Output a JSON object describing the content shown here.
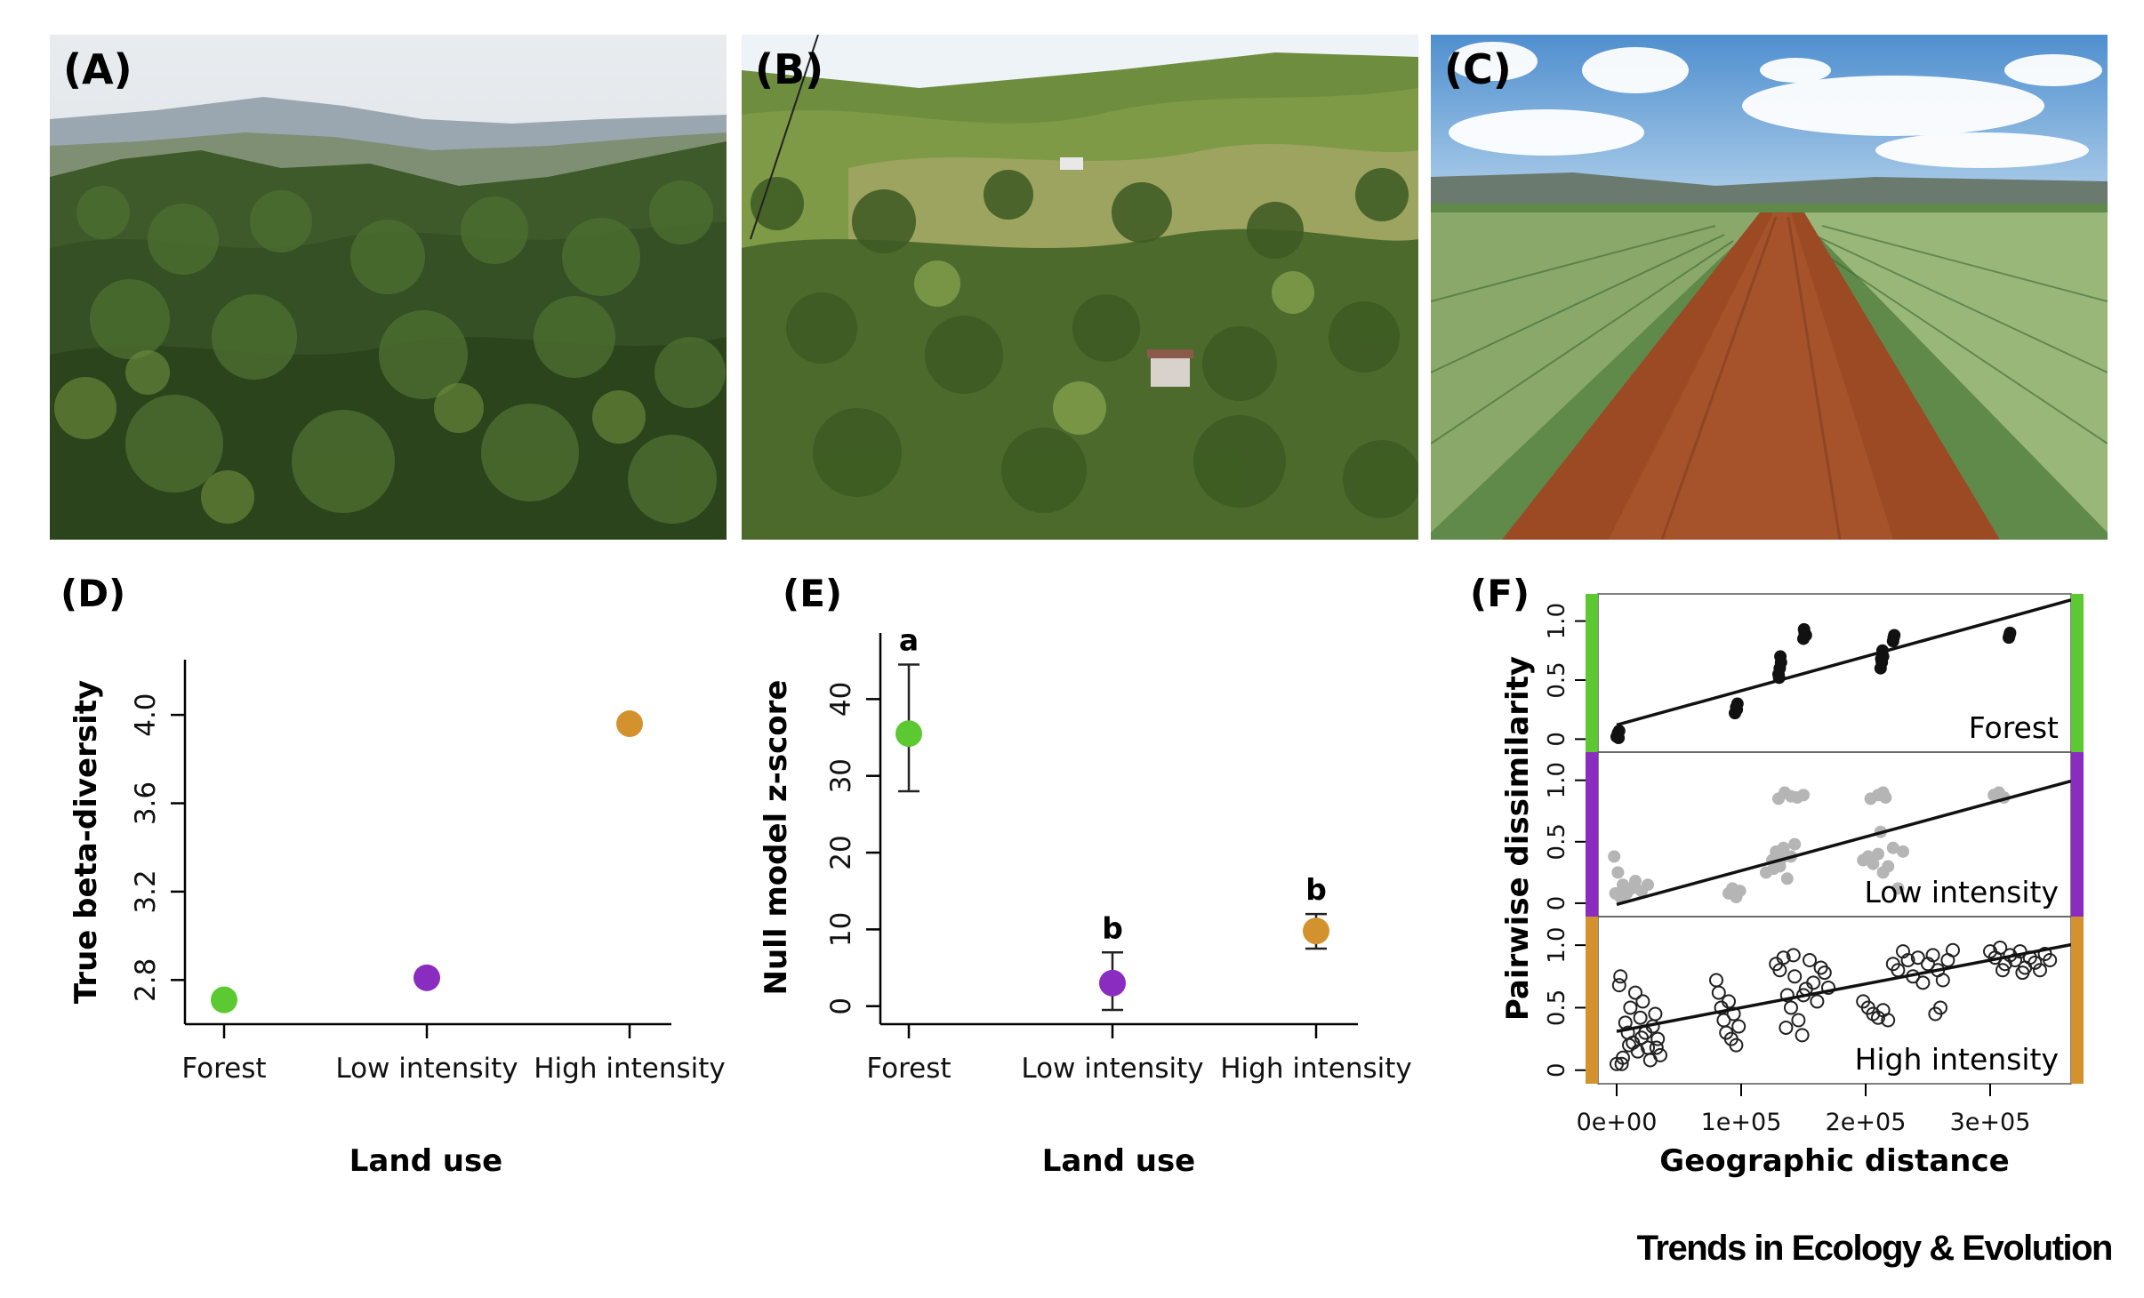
{
  "panel_labels": {
    "A": "(A)",
    "B": "(B)",
    "C": "(C)",
    "D": "(D)",
    "E": "(E)",
    "F": "(F)"
  },
  "photos": [
    {
      "id": "A",
      "subject": "forest-landscape-photo"
    },
    {
      "id": "B",
      "subject": "low-intensity-landscape-photo"
    },
    {
      "id": "C",
      "subject": "high-intensity-pineapple-plantation-photo"
    }
  ],
  "colors": {
    "forest": "#5cc832",
    "low": "#8b2cc0",
    "high": "#d4922e"
  },
  "chart_data": [
    {
      "panel": "D",
      "type": "scatter",
      "categories": [
        "Forest",
        "Low intensity",
        "High intensity"
      ],
      "values": [
        2.71,
        2.81,
        3.96
      ],
      "colors": [
        "#5cc832",
        "#8b2cc0",
        "#d4922e"
      ],
      "xlabel": "Land use",
      "ylabel": "True beta-diversity",
      "yticks": [
        "2.8",
        "3.2",
        "3.6",
        "4.0"
      ],
      "ylim": [
        2.6,
        4.25
      ]
    },
    {
      "panel": "E",
      "type": "scatter",
      "categories": [
        "Forest",
        "Low intensity",
        "High intensity"
      ],
      "values": [
        35.5,
        3.0,
        9.8
      ],
      "err_low": [
        28.0,
        -0.5,
        7.5
      ],
      "err_high": [
        44.5,
        7.0,
        12.0
      ],
      "significance": [
        "a",
        "b",
        "b"
      ],
      "colors": [
        "#5cc832",
        "#8b2cc0",
        "#d4922e"
      ],
      "xlabel": "Land use",
      "ylabel": "Null model z-score",
      "yticks": [
        "0",
        "10",
        "20",
        "30",
        "40"
      ],
      "ylim": [
        -2,
        50
      ]
    },
    {
      "panel": "F",
      "type": "scatter",
      "xlabel": "Geographic distance",
      "ylabel": "Pairwise dissimilarity",
      "xticks": [
        "0e+00",
        "1e+05",
        "2e+05",
        "3e+05"
      ],
      "xlim": [
        -15000,
        365000
      ],
      "yticks": [
        "0",
        "0.5",
        "1.0"
      ],
      "ylim": [
        -0.08,
        1.2
      ],
      "subplots": [
        {
          "name": "Forest",
          "color": "#5cc832",
          "marker": "filled-black",
          "fit": {
            "intercept": 0.12,
            "slope": 2.9e-06
          },
          "points": [
            [
              0,
              0.02
            ],
            [
              1000,
              0.05
            ],
            [
              1500,
              0.01
            ],
            [
              2000,
              0.07
            ],
            [
              95000,
              0.22
            ],
            [
              96000,
              0.27
            ],
            [
              97000,
              0.3
            ],
            [
              96500,
              0.25
            ],
            [
              130000,
              0.55
            ],
            [
              131000,
              0.6
            ],
            [
              132000,
              0.65
            ],
            [
              131500,
              0.7
            ],
            [
              130500,
              0.52
            ],
            [
              150000,
              0.85
            ],
            [
              151000,
              0.9
            ],
            [
              152000,
              0.88
            ],
            [
              150500,
              0.93
            ],
            [
              212000,
              0.6
            ],
            [
              213000,
              0.65
            ],
            [
              214000,
              0.7
            ],
            [
              213500,
              0.75
            ],
            [
              212500,
              0.68
            ],
            [
              222000,
              0.83
            ],
            [
              223000,
              0.88
            ],
            [
              222500,
              0.86
            ],
            [
              315000,
              0.86
            ],
            [
              316000,
              0.9
            ],
            [
              315500,
              0.88
            ]
          ]
        },
        {
          "name": "Low intensity",
          "color": "#8b2cc0",
          "marker": "filled-grey",
          "fit": {
            "intercept": -0.01,
            "slope": 2.75e-06
          },
          "points": [
            [
              -2000,
              0.38
            ],
            [
              1000,
              0.25
            ],
            [
              3000,
              0.05
            ],
            [
              5000,
              0.15
            ],
            [
              8000,
              0.08
            ],
            [
              12000,
              0.12
            ],
            [
              15000,
              0.18
            ],
            [
              20000,
              0.1
            ],
            [
              25000,
              0.15
            ],
            [
              -1000,
              0.08
            ],
            [
              90000,
              0.08
            ],
            [
              93000,
              0.12
            ],
            [
              96000,
              0.05
            ],
            [
              99000,
              0.1
            ],
            [
              120000,
              0.25
            ],
            [
              125000,
              0.35
            ],
            [
              128000,
              0.42
            ],
            [
              131000,
              0.3
            ],
            [
              134000,
              0.45
            ],
            [
              137000,
              0.2
            ],
            [
              140000,
              0.38
            ],
            [
              143000,
              0.48
            ],
            [
              126000,
              0.28
            ],
            [
              132000,
              0.36
            ],
            [
              130000,
              0.85
            ],
            [
              135000,
              0.9
            ],
            [
              140000,
              0.87
            ],
            [
              145000,
              0.86
            ],
            [
              150000,
              0.88
            ],
            [
              198000,
              0.35
            ],
            [
              202000,
              0.38
            ],
            [
              206000,
              0.32
            ],
            [
              210000,
              0.4
            ],
            [
              214000,
              0.25
            ],
            [
              218000,
              0.3
            ],
            [
              222000,
              0.45
            ],
            [
              226000,
              0.12
            ],
            [
              230000,
              0.42
            ],
            [
              212000,
              0.58
            ],
            [
              204000,
              0.85
            ],
            [
              210000,
              0.88
            ],
            [
              216000,
              0.86
            ],
            [
              214000,
              0.9
            ],
            [
              303000,
              0.88
            ],
            [
              307000,
              0.9
            ],
            [
              311000,
              0.86
            ]
          ]
        },
        {
          "name": "High intensity",
          "color": "#d4922e",
          "marker": "open-circle",
          "fit": {
            "intercept": 0.31,
            "slope": 1.9e-06
          },
          "points": [
            [
              0,
              0.05
            ],
            [
              3000,
              0.75
            ],
            [
              5000,
              0.1
            ],
            [
              7000,
              0.38
            ],
            [
              9000,
              0.3
            ],
            [
              11000,
              0.5
            ],
            [
              13000,
              0.22
            ],
            [
              15000,
              0.62
            ],
            [
              17000,
              0.15
            ],
            [
              19000,
              0.42
            ],
            [
              21000,
              0.55
            ],
            [
              23000,
              0.3
            ],
            [
              25000,
              0.18
            ],
            [
              27000,
              0.08
            ],
            [
              29000,
              0.35
            ],
            [
              31000,
              0.45
            ],
            [
              33000,
              0.25
            ],
            [
              35000,
              0.12
            ],
            [
              2000,
              0.68
            ],
            [
              4000,
              0.05
            ],
            [
              10000,
              0.2
            ],
            [
              20000,
              0.26
            ],
            [
              32000,
              0.18
            ],
            [
              80000,
              0.72
            ],
            [
              82000,
              0.62
            ],
            [
              84000,
              0.5
            ],
            [
              86000,
              0.4
            ],
            [
              88000,
              0.3
            ],
            [
              90000,
              0.55
            ],
            [
              92000,
              0.25
            ],
            [
              94000,
              0.45
            ],
            [
              96000,
              0.2
            ],
            [
              98000,
              0.35
            ],
            [
              128000,
              0.85
            ],
            [
              131000,
              0.8
            ],
            [
              134000,
              0.9
            ],
            [
              137000,
              0.6
            ],
            [
              140000,
              0.5
            ],
            [
              143000,
              0.75
            ],
            [
              146000,
              0.4
            ],
            [
              149000,
              0.28
            ],
            [
              152000,
              0.65
            ],
            [
              155000,
              0.88
            ],
            [
              158000,
              0.7
            ],
            [
              161000,
              0.55
            ],
            [
              164000,
              0.82
            ],
            [
              167000,
              0.78
            ],
            [
              170000,
              0.66
            ],
            [
              136000,
              0.34
            ],
            [
              142000,
              0.92
            ],
            [
              150000,
              0.6
            ],
            [
              198000,
              0.55
            ],
            [
              202000,
              0.5
            ],
            [
              206000,
              0.45
            ],
            [
              210000,
              0.42
            ],
            [
              214000,
              0.48
            ],
            [
              218000,
              0.4
            ],
            [
              222000,
              0.85
            ],
            [
              226000,
              0.8
            ],
            [
              230000,
              0.95
            ],
            [
              234000,
              0.88
            ],
            [
              238000,
              0.75
            ],
            [
              242000,
              0.9
            ],
            [
              246000,
              0.7
            ],
            [
              250000,
              0.85
            ],
            [
              254000,
              0.92
            ],
            [
              258000,
              0.8
            ],
            [
              262000,
              0.72
            ],
            [
              266000,
              0.88
            ],
            [
              270000,
              0.96
            ],
            [
              256000,
              0.45
            ],
            [
              260000,
              0.5
            ],
            [
              300000,
              0.95
            ],
            [
              304000,
              0.9
            ],
            [
              308000,
              0.98
            ],
            [
              312000,
              0.85
            ],
            [
              316000,
              0.92
            ],
            [
              320000,
              0.88
            ],
            [
              324000,
              0.95
            ],
            [
              328000,
              0.82
            ],
            [
              332000,
              0.9
            ],
            [
              336000,
              0.86
            ],
            [
              340000,
              0.8
            ],
            [
              344000,
              0.93
            ],
            [
              348000,
              0.88
            ],
            [
              310000,
              0.8
            ],
            [
              326000,
              0.78
            ]
          ]
        }
      ]
    }
  ],
  "footer": {
    "journal": "Trends in Ecology & Evolution"
  }
}
